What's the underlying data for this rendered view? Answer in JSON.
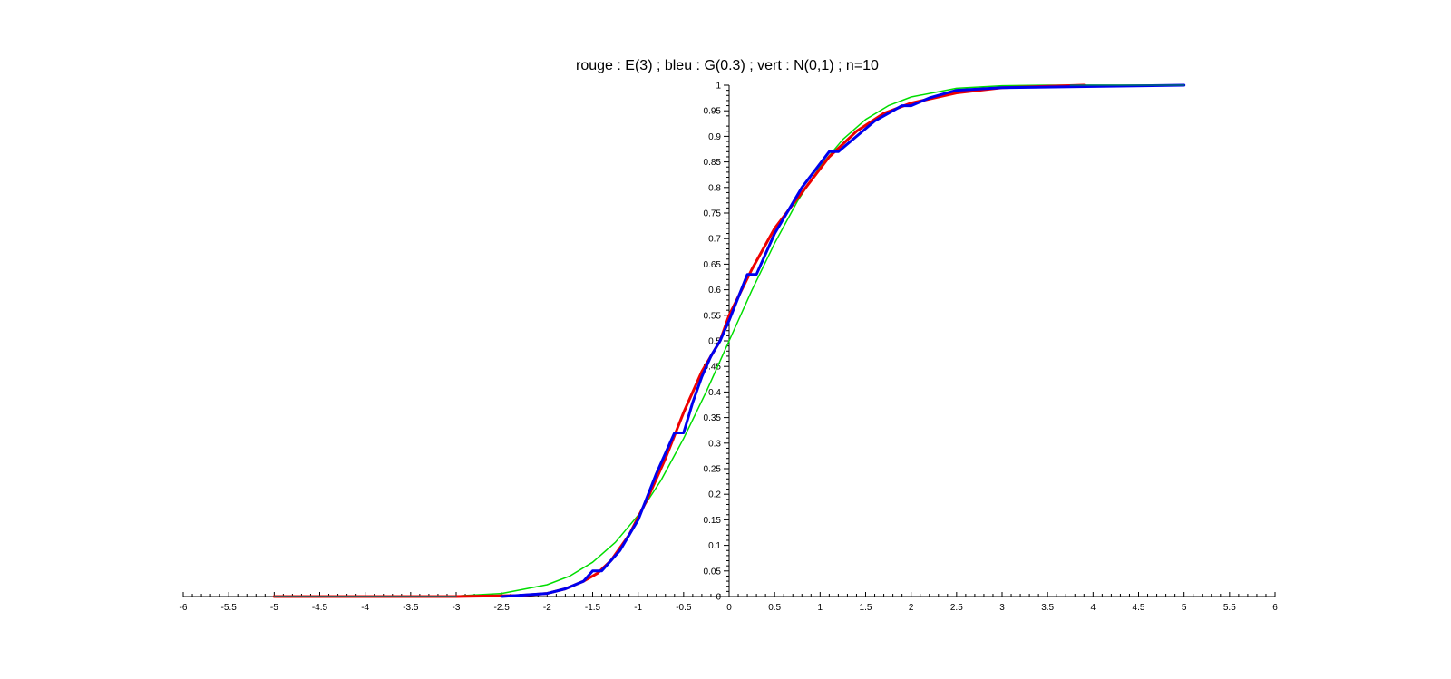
{
  "chart_data": {
    "type": "line",
    "title": "rouge : E(3) ; bleu : G(0.3) ; vert : N(0,1) ; n=10",
    "xlabel": "",
    "ylabel": "",
    "xlim": [
      -6,
      6
    ],
    "ylim": [
      0,
      1
    ],
    "grid": false,
    "x_tick_labels": [
      "-6",
      "-5.5",
      "-5",
      "-4.5",
      "-4",
      "-3.5",
      "-3",
      "-2.5",
      "-2",
      "-1.5",
      "-1",
      "-0.5",
      "0",
      "0.5",
      "1",
      "1.5",
      "2",
      "2.5",
      "3",
      "3.5",
      "4",
      "4.5",
      "5",
      "5.5",
      "6"
    ],
    "y_tick_labels": [
      "0",
      "0.05",
      "0.1",
      "0.15",
      "0.2",
      "0.25",
      "0.3",
      "0.35",
      "0.4",
      "0.45",
      "0.5",
      "0.55",
      "0.6",
      "0.65",
      "0.7",
      "0.75",
      "0.8",
      "0.85",
      "0.9",
      "0.95",
      "1"
    ],
    "series": [
      {
        "color": "#00dd00",
        "stroke_width": 1.5,
        "x": [
          -5.0,
          -3.0,
          -2.5,
          -2.0,
          -1.75,
          -1.5,
          -1.25,
          -1.0,
          -0.75,
          -0.5,
          -0.25,
          0.0,
          0.25,
          0.5,
          0.75,
          1.0,
          1.25,
          1.5,
          1.75,
          2.0,
          2.5,
          3.0,
          3.5,
          5.0
        ],
        "y": [
          0.0,
          0.001,
          0.006,
          0.023,
          0.04,
          0.067,
          0.106,
          0.159,
          0.227,
          0.309,
          0.401,
          0.5,
          0.599,
          0.691,
          0.773,
          0.841,
          0.894,
          0.933,
          0.96,
          0.977,
          0.994,
          0.999,
          1.0,
          1.0
        ]
      },
      {
        "color": "#ee0000",
        "stroke_width": 3,
        "x": [
          -5.0,
          -3.0,
          -2.3,
          -2.0,
          -1.8,
          -1.6,
          -1.45,
          -1.3,
          -1.1,
          -0.9,
          -0.7,
          -0.5,
          -0.3,
          -0.1,
          0.0,
          0.25,
          0.5,
          0.8,
          1.1,
          1.4,
          1.7,
          2.0,
          2.5,
          3.0,
          3.9
        ],
        "y": [
          0.0,
          0.0,
          0.002,
          0.006,
          0.015,
          0.03,
          0.045,
          0.07,
          0.12,
          0.19,
          0.27,
          0.36,
          0.44,
          0.5,
          0.55,
          0.64,
          0.72,
          0.79,
          0.86,
          0.91,
          0.945,
          0.965,
          0.985,
          0.995,
          1.0
        ]
      },
      {
        "color": "#0000ee",
        "stroke_width": 3,
        "x": [
          -2.5,
          -2.0,
          -1.8,
          -1.6,
          -1.5,
          -1.4,
          -1.2,
          -1.0,
          -0.8,
          -0.6,
          -0.5,
          -0.4,
          -0.3,
          -0.2,
          -0.1,
          0.0,
          0.2,
          0.3,
          0.5,
          0.8,
          1.1,
          1.2,
          1.4,
          1.6,
          1.9,
          2.0,
          2.2,
          2.5,
          3.0,
          5.0
        ],
        "y": [
          0.0,
          0.006,
          0.015,
          0.03,
          0.05,
          0.05,
          0.09,
          0.15,
          0.24,
          0.32,
          0.32,
          0.38,
          0.43,
          0.47,
          0.5,
          0.54,
          0.63,
          0.63,
          0.71,
          0.8,
          0.87,
          0.87,
          0.9,
          0.93,
          0.96,
          0.96,
          0.975,
          0.99,
          0.995,
          1.0
        ]
      },
      {
        "color": "#007070",
        "stroke_width": 1.5,
        "x": [
          -5.0,
          -3.0
        ],
        "y": [
          0.0,
          0.0
        ]
      },
      {
        "color": "#007070",
        "stroke_width": 1.5,
        "x": [
          3.75,
          5.0
        ],
        "y": [
          1.0,
          1.0
        ]
      }
    ]
  }
}
